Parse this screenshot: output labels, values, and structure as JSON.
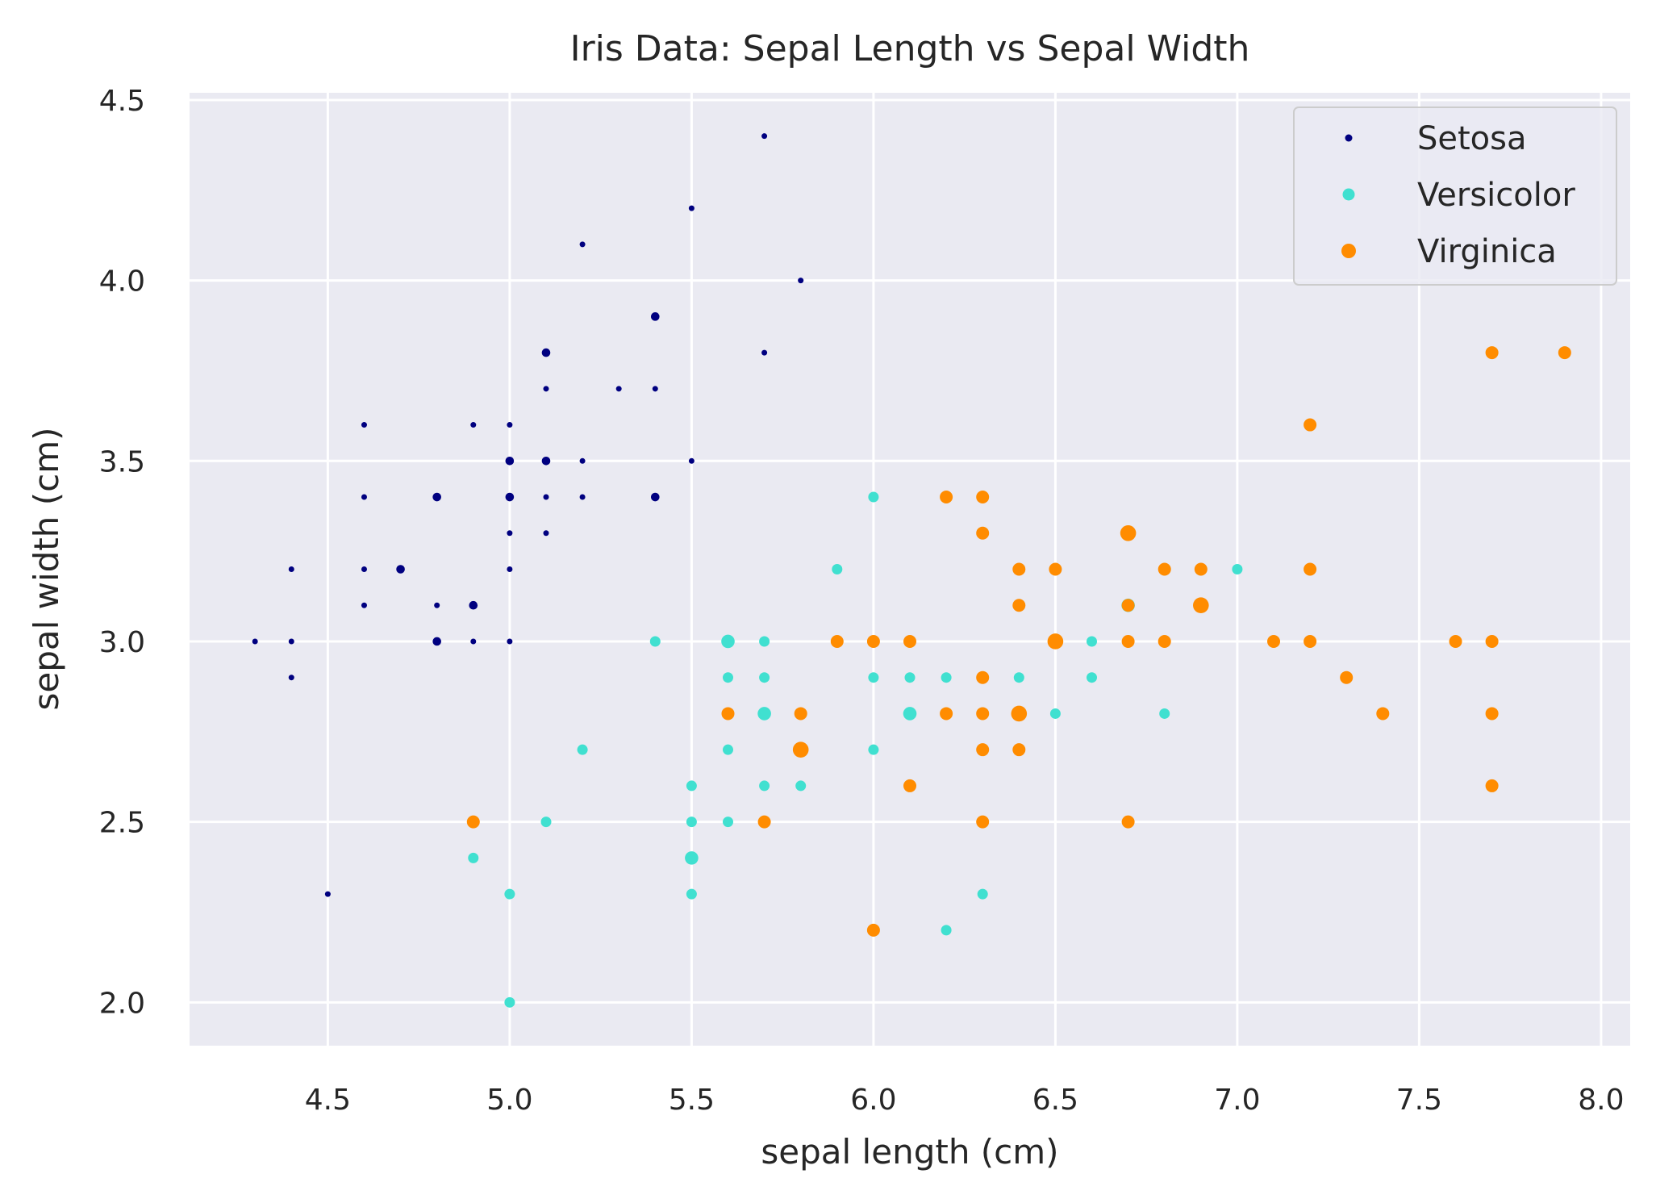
{
  "chart_data": {
    "type": "scatter",
    "title": "Iris Data: Sepal Length vs Sepal Width",
    "xlabel": "sepal length (cm)",
    "ylabel": "sepal width (cm)",
    "xlim": [
      4.12,
      8.08
    ],
    "ylim": [
      1.88,
      4.52
    ],
    "xticks": [
      4.5,
      5.0,
      5.5,
      6.0,
      6.5,
      7.0,
      7.5,
      8.0
    ],
    "xtick_labels": [
      "4.5",
      "5.0",
      "5.5",
      "6.0",
      "6.5",
      "7.0",
      "7.5",
      "8.0"
    ],
    "yticks": [
      2.0,
      2.5,
      3.0,
      3.5,
      4.0,
      4.5
    ],
    "ytick_labels": [
      "2.0",
      "2.5",
      "3.0",
      "3.5",
      "4.0",
      "4.5"
    ],
    "grid": true,
    "legend_position": "top-right",
    "series": [
      {
        "name": "Setosa",
        "color": "#000080",
        "points": [
          [
            5.1,
            3.5
          ],
          [
            4.9,
            3.0
          ],
          [
            4.7,
            3.2
          ],
          [
            4.6,
            3.1
          ],
          [
            5.0,
            3.6
          ],
          [
            5.4,
            3.9
          ],
          [
            4.6,
            3.4
          ],
          [
            5.0,
            3.4
          ],
          [
            4.4,
            2.9
          ],
          [
            4.9,
            3.1
          ],
          [
            5.4,
            3.7
          ],
          [
            4.8,
            3.4
          ],
          [
            4.8,
            3.0
          ],
          [
            4.3,
            3.0
          ],
          [
            5.8,
            4.0
          ],
          [
            5.7,
            4.4
          ],
          [
            5.4,
            3.9
          ],
          [
            5.1,
            3.5
          ],
          [
            5.7,
            3.8
          ],
          [
            5.1,
            3.8
          ],
          [
            5.4,
            3.4
          ],
          [
            5.1,
            3.7
          ],
          [
            4.6,
            3.6
          ],
          [
            5.1,
            3.3
          ],
          [
            4.8,
            3.4
          ],
          [
            5.0,
            3.0
          ],
          [
            5.0,
            3.4
          ],
          [
            5.2,
            3.5
          ],
          [
            5.2,
            3.4
          ],
          [
            4.7,
            3.2
          ],
          [
            4.8,
            3.1
          ],
          [
            5.4,
            3.4
          ],
          [
            5.2,
            4.1
          ],
          [
            5.5,
            4.2
          ],
          [
            4.9,
            3.1
          ],
          [
            5.0,
            3.2
          ],
          [
            5.5,
            3.5
          ],
          [
            4.9,
            3.6
          ],
          [
            4.4,
            3.0
          ],
          [
            5.1,
            3.4
          ],
          [
            5.0,
            3.5
          ],
          [
            4.5,
            2.3
          ],
          [
            4.4,
            3.2
          ],
          [
            5.0,
            3.5
          ],
          [
            5.1,
            3.8
          ],
          [
            4.8,
            3.0
          ],
          [
            5.1,
            3.8
          ],
          [
            4.6,
            3.2
          ],
          [
            5.3,
            3.7
          ],
          [
            5.0,
            3.3
          ]
        ]
      },
      {
        "name": "Versicolor",
        "color": "#40e0d0",
        "points": [
          [
            7.0,
            3.2
          ],
          [
            6.4,
            3.2
          ],
          [
            6.9,
            3.1
          ],
          [
            5.5,
            2.3
          ],
          [
            6.5,
            2.8
          ],
          [
            5.7,
            2.8
          ],
          [
            6.3,
            3.3
          ],
          [
            4.9,
            2.4
          ],
          [
            6.6,
            2.9
          ],
          [
            5.2,
            2.7
          ],
          [
            5.0,
            2.0
          ],
          [
            5.9,
            3.0
          ],
          [
            6.0,
            2.2
          ],
          [
            6.1,
            2.9
          ],
          [
            5.6,
            2.9
          ],
          [
            6.7,
            3.1
          ],
          [
            5.6,
            3.0
          ],
          [
            5.8,
            2.7
          ],
          [
            6.2,
            2.2
          ],
          [
            5.6,
            2.5
          ],
          [
            5.9,
            3.2
          ],
          [
            6.1,
            2.8
          ],
          [
            6.3,
            2.5
          ],
          [
            6.1,
            2.8
          ],
          [
            6.4,
            2.9
          ],
          [
            6.6,
            3.0
          ],
          [
            6.8,
            2.8
          ],
          [
            6.7,
            3.0
          ],
          [
            6.0,
            2.9
          ],
          [
            5.7,
            2.6
          ],
          [
            5.5,
            2.4
          ],
          [
            5.5,
            2.4
          ],
          [
            5.8,
            2.7
          ],
          [
            6.0,
            2.7
          ],
          [
            5.4,
            3.0
          ],
          [
            6.0,
            3.4
          ],
          [
            6.7,
            3.1
          ],
          [
            6.3,
            2.3
          ],
          [
            5.6,
            3.0
          ],
          [
            5.5,
            2.5
          ],
          [
            5.5,
            2.6
          ],
          [
            6.1,
            3.0
          ],
          [
            5.8,
            2.6
          ],
          [
            5.0,
            2.3
          ],
          [
            5.6,
            2.7
          ],
          [
            5.7,
            3.0
          ],
          [
            5.7,
            2.9
          ],
          [
            6.2,
            2.9
          ],
          [
            5.1,
            2.5
          ],
          [
            5.7,
            2.8
          ]
        ]
      },
      {
        "name": "Virginica",
        "color": "#ff8c00",
        "points": [
          [
            6.3,
            3.3
          ],
          [
            5.8,
            2.7
          ],
          [
            7.1,
            3.0
          ],
          [
            6.3,
            2.9
          ],
          [
            6.5,
            3.0
          ],
          [
            7.6,
            3.0
          ],
          [
            4.9,
            2.5
          ],
          [
            7.3,
            2.9
          ],
          [
            6.7,
            2.5
          ],
          [
            7.2,
            3.6
          ],
          [
            6.5,
            3.2
          ],
          [
            6.4,
            2.7
          ],
          [
            6.8,
            3.0
          ],
          [
            5.7,
            2.5
          ],
          [
            5.8,
            2.8
          ],
          [
            6.4,
            3.2
          ],
          [
            6.5,
            3.0
          ],
          [
            7.7,
            3.8
          ],
          [
            7.7,
            2.6
          ],
          [
            6.0,
            2.2
          ],
          [
            6.9,
            3.2
          ],
          [
            5.6,
            2.8
          ],
          [
            7.7,
            2.8
          ],
          [
            6.3,
            2.7
          ],
          [
            6.7,
            3.3
          ],
          [
            7.2,
            3.2
          ],
          [
            6.2,
            2.8
          ],
          [
            6.1,
            3.0
          ],
          [
            6.4,
            2.8
          ],
          [
            7.2,
            3.0
          ],
          [
            7.4,
            2.8
          ],
          [
            7.9,
            3.8
          ],
          [
            6.4,
            2.8
          ],
          [
            6.3,
            2.8
          ],
          [
            6.1,
            2.6
          ],
          [
            7.7,
            3.0
          ],
          [
            6.3,
            3.4
          ],
          [
            6.4,
            3.1
          ],
          [
            6.0,
            3.0
          ],
          [
            6.9,
            3.1
          ],
          [
            6.7,
            3.1
          ],
          [
            6.9,
            3.1
          ],
          [
            5.8,
            2.7
          ],
          [
            6.8,
            3.2
          ],
          [
            6.7,
            3.3
          ],
          [
            6.7,
            3.0
          ],
          [
            6.3,
            2.5
          ],
          [
            6.5,
            3.0
          ],
          [
            6.2,
            3.4
          ],
          [
            5.9,
            3.0
          ]
        ]
      }
    ]
  }
}
